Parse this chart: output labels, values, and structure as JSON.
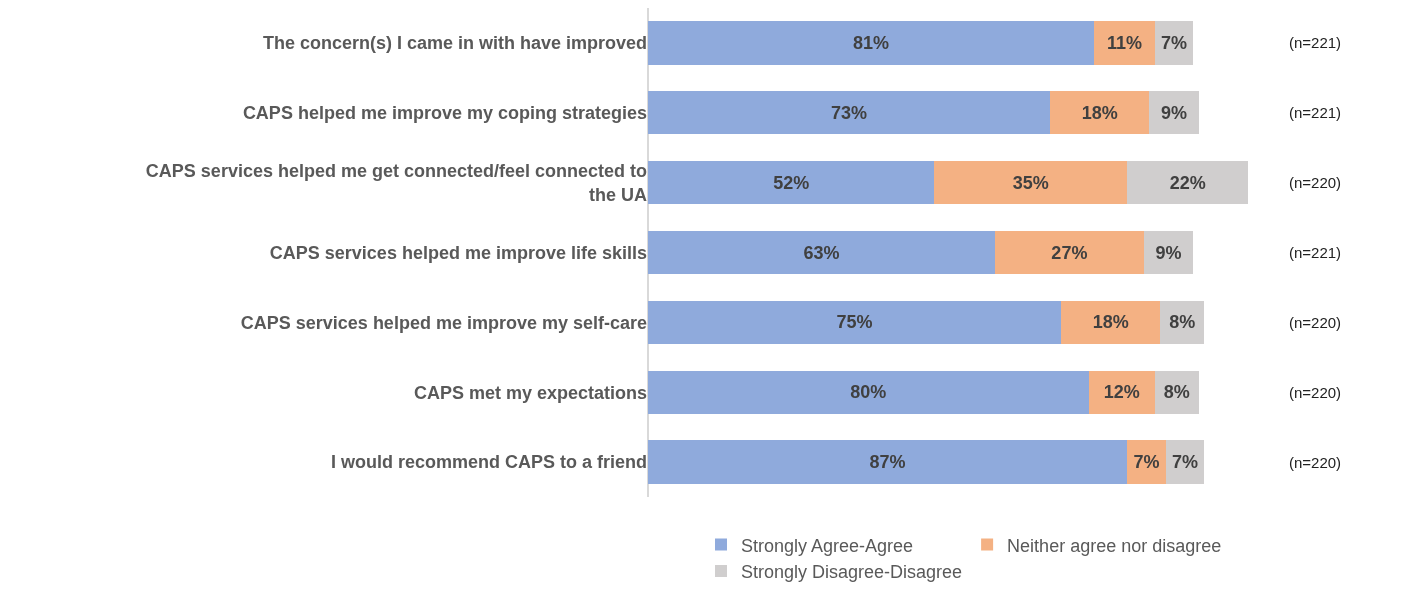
{
  "chart_data": {
    "type": "bar",
    "orientation": "horizontal",
    "stacked": true,
    "legend": "bottom",
    "grid": false,
    "tick_labels": "y",
    "categories": [
      "The concern(s) I came in with have improved",
      "CAPS helped me improve my coping strategies",
      "CAPS services helped me get connected/feel connected to the UA",
      "CAPS services helped me improve life skills",
      "CAPS services helped me improve my self-care",
      "CAPS met my expectations",
      "I would recommend CAPS to a friend"
    ],
    "series": [
      {
        "name": "Strongly Agree-Agree",
        "color": "#8faadc",
        "values": [
          81,
          73,
          52,
          63,
          75,
          80,
          87
        ],
        "value_labels": [
          "81%",
          "73%",
          "52%",
          "63%",
          "75%",
          "80%",
          "87%"
        ]
      },
      {
        "name": "Neither agree nor disagree",
        "color": "#f4b183",
        "values": [
          11,
          18,
          35,
          27,
          18,
          12,
          7
        ],
        "value_labels": [
          "11%",
          "18%",
          "35%",
          "27%",
          "18%",
          "12%",
          "7%"
        ]
      },
      {
        "name": "Strongly Disagree-Disagree",
        "color": "#d0cece",
        "values": [
          7,
          9,
          22,
          9,
          8,
          8,
          7
        ],
        "value_labels": [
          "7%",
          "9%",
          "22%",
          "9%",
          "8%",
          "8%",
          "7%"
        ]
      }
    ],
    "annotations": [
      "(n=221)",
      "(n=221)",
      "(n=220)",
      "(n=221)",
      "(n=220)",
      "(n=220)",
      "(n=220)"
    ]
  }
}
